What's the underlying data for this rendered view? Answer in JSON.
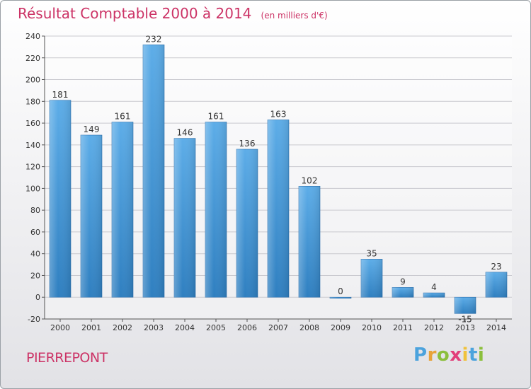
{
  "chart_data": {
    "type": "bar",
    "title": "Résultat Comptable 2000 à 2014",
    "subtitle": "(en milliers d'€)",
    "categories": [
      "2000",
      "2001",
      "2002",
      "2003",
      "2004",
      "2005",
      "2006",
      "2007",
      "2008",
      "2009",
      "2010",
      "2011",
      "2012",
      "2013",
      "2014"
    ],
    "values": [
      181,
      149,
      161,
      232,
      146,
      161,
      136,
      163,
      102,
      0,
      35,
      9,
      4,
      -15,
      23
    ],
    "data_labels": [
      "181",
      "149",
      "161",
      "232",
      "146",
      "161",
      "136",
      "163",
      "102",
      "0",
      "35",
      "9",
      "4",
      "-15",
      "23"
    ],
    "y_ticks": [
      "-20",
      "0",
      "20",
      "40",
      "60",
      "80",
      "100",
      "120",
      "140",
      "160",
      "180",
      "200",
      "220",
      "240"
    ],
    "ylim": [
      -20,
      240
    ],
    "grid": true,
    "bar_color": "#4a98d8"
  },
  "commune": "PIERREPONT",
  "logo": {
    "letters": [
      "P",
      "r",
      "o",
      "x",
      "i",
      "t",
      "i"
    ],
    "colors": [
      "#4ca3dd",
      "#e8a33a",
      "#8bbf3c",
      "#e23f7a",
      "#f0c23b",
      "#4ca3dd",
      "#8bbf3c"
    ]
  }
}
